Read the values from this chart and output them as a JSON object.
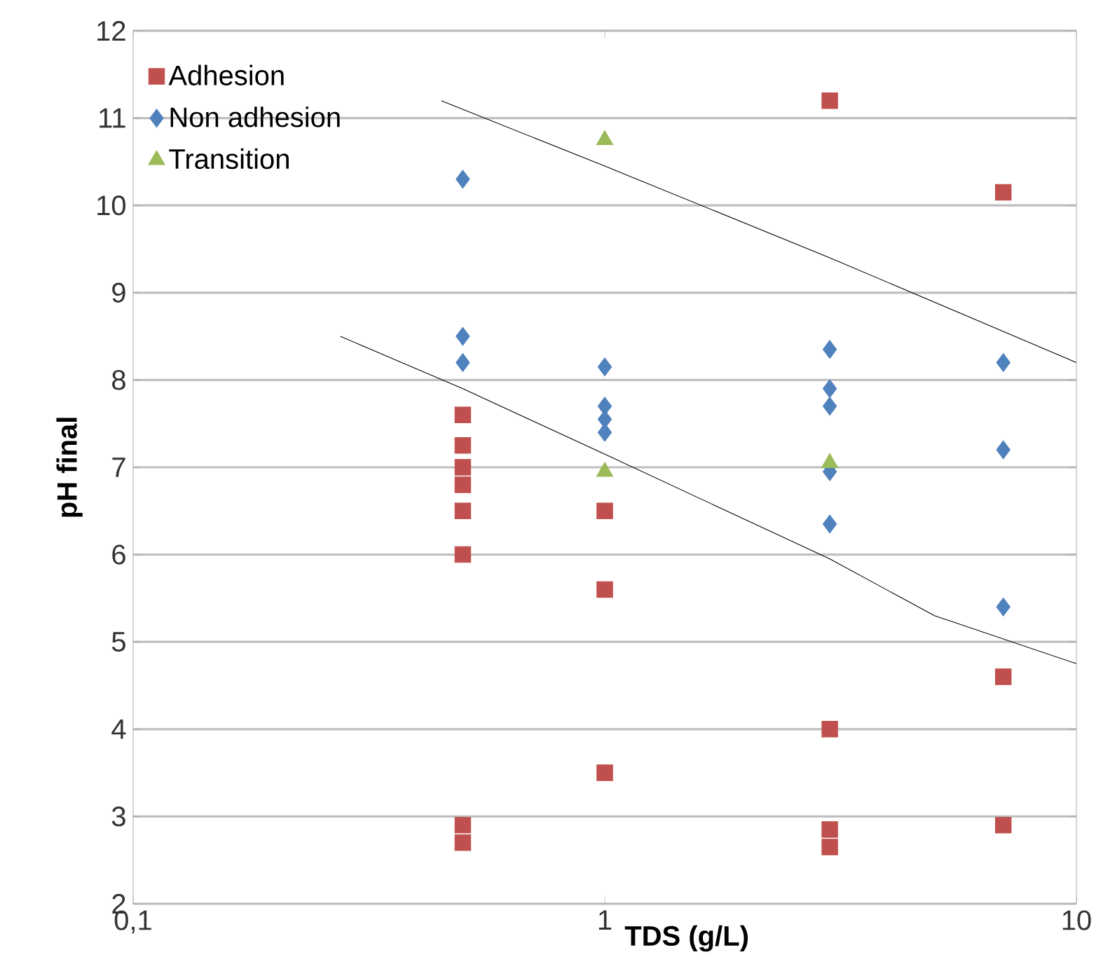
{
  "chart_data": {
    "type": "scatter",
    "xlabel": "TDS (g/L)",
    "ylabel": "pH final",
    "xlim": [
      0.1,
      10
    ],
    "ylim": [
      2,
      12
    ],
    "log": "x",
    "grid": "y",
    "legend": "top left",
    "xticks": [
      {
        "value": 0.1,
        "label": "0,1"
      },
      1,
      10
    ],
    "yticks": [
      2,
      3,
      4,
      5,
      6,
      7,
      8,
      9,
      10,
      11,
      12
    ],
    "series": [
      {
        "name": "Adhesion",
        "color": "#c0504d",
        "marker": "square",
        "x": [
          0.5,
          0.5,
          0.5,
          0.5,
          0.5,
          0.5,
          0.5,
          0.5,
          1,
          1,
          1,
          3,
          3,
          3,
          3,
          7,
          7,
          7
        ],
        "values": [
          7.6,
          7.25,
          7.0,
          6.8,
          6.5,
          6.0,
          2.9,
          2.7,
          6.5,
          5.6,
          3.5,
          11.2,
          4.0,
          2.85,
          2.65,
          10.15,
          4.6,
          2.9
        ]
      },
      {
        "name": "Non adhesion",
        "color": "#4f81bd",
        "marker": "diamond",
        "x": [
          0.5,
          0.5,
          0.5,
          1,
          1,
          1,
          1,
          3,
          3,
          3,
          3,
          3,
          7,
          7,
          7
        ],
        "values": [
          10.3,
          8.5,
          8.2,
          8.15,
          7.7,
          7.55,
          7.4,
          8.35,
          7.9,
          7.7,
          6.95,
          6.35,
          8.2,
          7.2,
          5.4
        ]
      },
      {
        "name": "Transition",
        "color": "#9bbb59",
        "marker": "triangle",
        "x": [
          1,
          1,
          3
        ],
        "values": [
          10.75,
          6.95,
          7.05
        ]
      },
      {
        "type": "line",
        "color": "#000000",
        "marker": "none",
        "x": [
          0.45,
          1,
          3,
          10
        ],
        "values": [
          11.2,
          10.45,
          9.4,
          8.2
        ]
      },
      {
        "type": "line",
        "color": "#000000",
        "marker": "none",
        "x": [
          0.275,
          0.5,
          1,
          3,
          5,
          10
        ],
        "values": [
          8.5,
          7.9,
          7.15,
          5.95,
          5.3,
          4.75
        ]
      }
    ]
  }
}
